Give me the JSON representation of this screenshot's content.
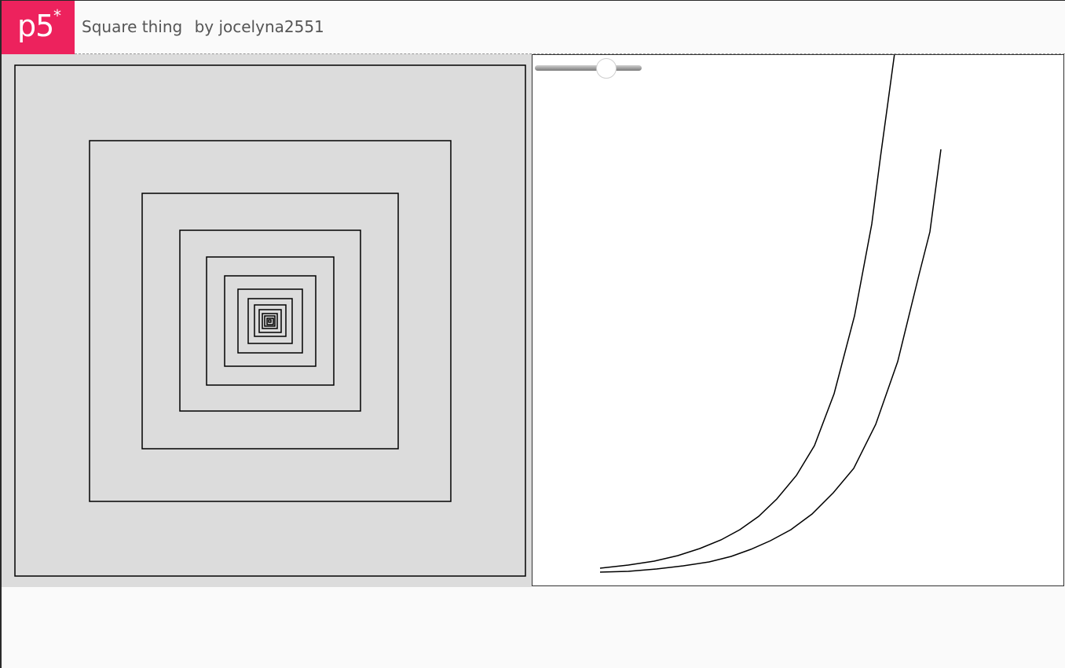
{
  "header": {
    "logo_text": "p5",
    "logo_star": "*",
    "sketch_title": "Square thing",
    "author_label": "by jocelyna2551"
  },
  "colors": {
    "brand": "#ed225d",
    "left_canvas_bg": "#dcdcdc",
    "right_canvas_bg": "#ffffff",
    "stroke": "#000000"
  },
  "slider": {
    "value": 0.68
  }
}
